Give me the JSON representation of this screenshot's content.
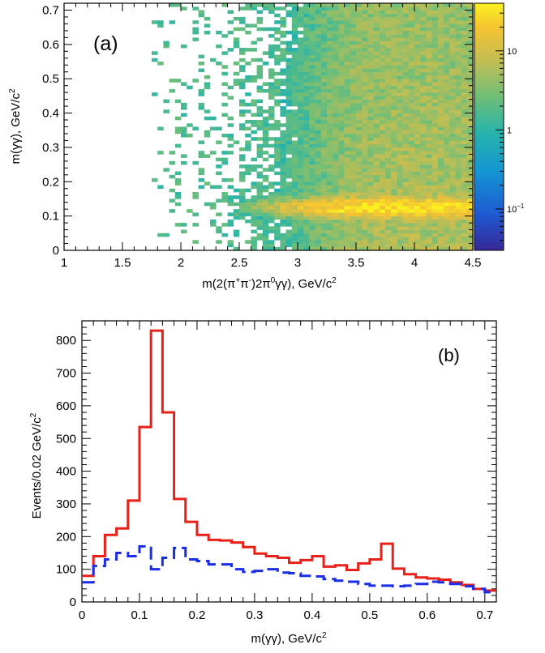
{
  "chart_data": [
    {
      "type": "heatmap",
      "panel_label": "(a)",
      "xlabel_parts": [
        "m(2(π",
        "+",
        "π",
        "-",
        ")2π",
        "0",
        "γγ), GeV/c",
        "2"
      ],
      "ylabel_parts": [
        "m(γγ), GeV/c",
        "2"
      ],
      "xlim": [
        1,
        4.5
      ],
      "ylim": [
        0,
        0.72
      ],
      "xticks": [
        "1",
        "1.5",
        "2",
        "2.5",
        "3",
        "3.5",
        "4",
        "4.5"
      ],
      "xtick_values": [
        1,
        1.5,
        2,
        2.5,
        3,
        3.5,
        4,
        4.5
      ],
      "yticks": [
        "0",
        "0.1",
        "0.2",
        "0.3",
        "0.4",
        "0.5",
        "0.6",
        "0.7"
      ],
      "ytick_values": [
        0,
        0.1,
        0.2,
        0.3,
        0.4,
        0.5,
        0.6,
        0.7
      ],
      "bins": {
        "x": 70,
        "y": 72
      },
      "z_scale": "log",
      "zlim": [
        0.03,
        40
      ],
      "colorbar_ticks": [
        {
          "label": "10",
          "sup": "",
          "value": 10
        },
        {
          "label": "1",
          "sup": "",
          "value": 1
        },
        {
          "label": "10",
          "sup": "−1",
          "value": 0.1
        }
      ],
      "density_model": {
        "x_onset": 1.75,
        "pi0_peak_y": 0.125,
        "peak_max_z": 30
      }
    },
    {
      "type": "line",
      "panel_label": "(b)",
      "xlabel_parts": [
        "m(γγ), GeV/c",
        "2"
      ],
      "ylabel_parts": [
        "Events/0.02 GeV/c",
        "2"
      ],
      "xlim": [
        0,
        0.72
      ],
      "ylim": [
        0,
        860
      ],
      "xticks": [
        "0",
        "0.1",
        "0.2",
        "0.3",
        "0.4",
        "0.5",
        "0.6",
        "0.7"
      ],
      "xtick_values": [
        0,
        0.1,
        0.2,
        0.3,
        0.4,
        0.5,
        0.6,
        0.7
      ],
      "yticks": [
        "0",
        "100",
        "200",
        "300",
        "400",
        "500",
        "600",
        "700",
        "800"
      ],
      "ytick_values": [
        0,
        100,
        200,
        300,
        400,
        500,
        600,
        700,
        800
      ],
      "bin_width": 0.02,
      "bin_edges_start": 0,
      "series": [
        {
          "style": "solid",
          "color": "#e8201a",
          "values": [
            80,
            140,
            205,
            225,
            310,
            535,
            830,
            580,
            315,
            245,
            205,
            190,
            188,
            182,
            168,
            148,
            140,
            135,
            120,
            128,
            140,
            108,
            112,
            98,
            118,
            130,
            178,
            102,
            85,
            75,
            72,
            68,
            60,
            52,
            40,
            35
          ]
        },
        {
          "style": "dashed",
          "color": "#1a2ee8",
          "values": [
            60,
            110,
            130,
            150,
            140,
            170,
            100,
            135,
            165,
            130,
            125,
            115,
            115,
            100,
            92,
            95,
            100,
            90,
            88,
            80,
            78,
            70,
            65,
            62,
            55,
            50,
            50,
            48,
            50,
            55,
            62,
            60,
            55,
            48,
            40,
            30
          ]
        }
      ]
    }
  ]
}
